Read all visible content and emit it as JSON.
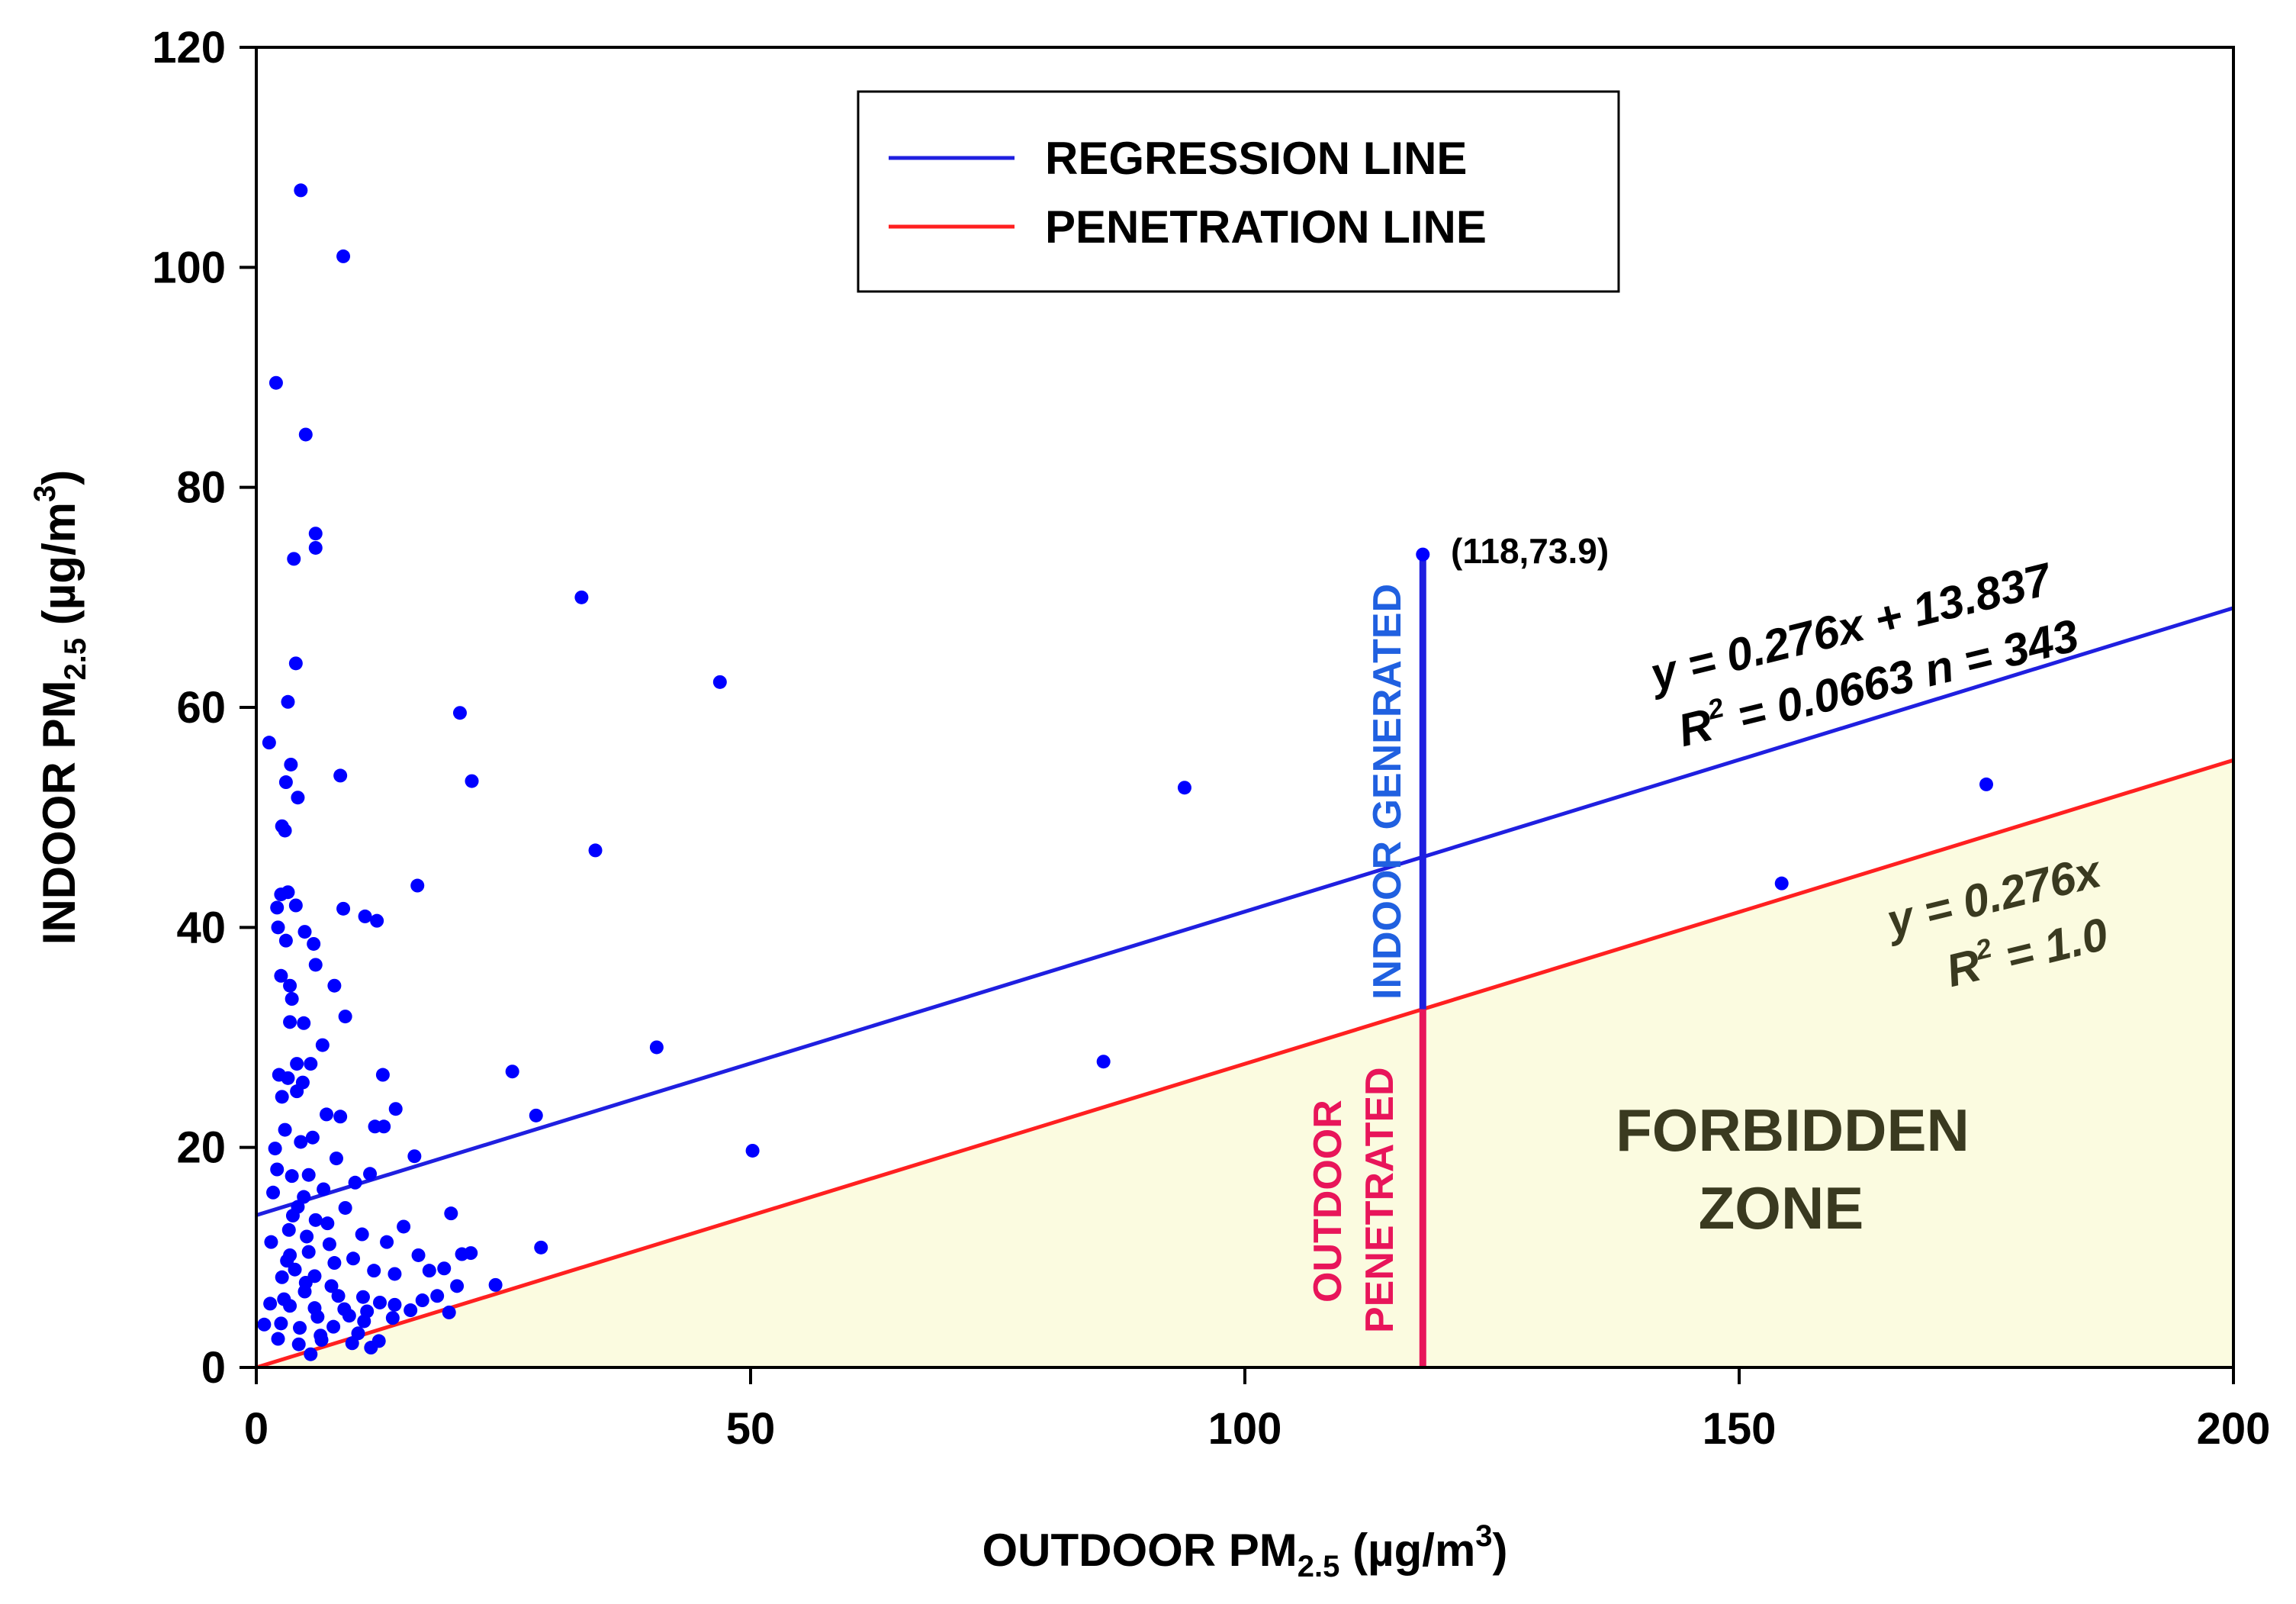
{
  "chart_data": {
    "type": "scatter",
    "xlabel_main": "OUTDOOR PM",
    "xlabel_sub": "2.5",
    "xlabel_unit": " (µg/m",
    "xlabel_sup": "3",
    "xlabel_close": ")",
    "ylabel_main": "INDOOR PM",
    "ylabel_sub": "2.5",
    "ylabel_unit": " (µg/m",
    "ylabel_sup": "3",
    "ylabel_close": ")",
    "xlim": [
      0,
      200
    ],
    "ylim": [
      0,
      120
    ],
    "xticks": [
      "0",
      "50",
      "100",
      "150",
      "200"
    ],
    "yticks": [
      "0",
      "20",
      "40",
      "60",
      "80",
      "100",
      "120"
    ],
    "xtick_values": [
      0,
      50,
      100,
      150,
      200
    ],
    "ytick_values": [
      0,
      20,
      40,
      60,
      80,
      100,
      120
    ],
    "grid": false,
    "legend_position": "top-center",
    "legend": [
      {
        "label": "REGRESSION LINE",
        "color": "#1f1fe0"
      },
      {
        "label": "PENETRATION LINE",
        "color": "#ff2020"
      }
    ],
    "regression": {
      "slope": 0.276,
      "intercept": 13.837,
      "color": "#1f1fe0",
      "eq_line1": "y = 0.276x + 13.837",
      "eq_r": "R",
      "eq_sup": "2",
      "eq_rest": " = 0.0663  n = 343"
    },
    "penetration": {
      "slope": 0.276,
      "intercept": 0,
      "color": "#ff2020",
      "eq_line1": "y = 0.276x",
      "eq_r": "R",
      "eq_sup": "2",
      "eq_rest": " = 1.0"
    },
    "highlight_point": {
      "x": 118,
      "y": 73.9,
      "label": "(118,73.9)"
    },
    "indoor_label": "INDOOR GENERATED",
    "outdoor_label_1": "OUTDOOR",
    "outdoor_label_2": "PENETRATED",
    "forbidden_1": "FORBIDDEN",
    "forbidden_2": "ZONE",
    "forbidden_color": "#fbfbe0",
    "point_color": "#0000ff",
    "points": [
      [
        4.5,
        107
      ],
      [
        8.8,
        101
      ],
      [
        2,
        89.5
      ],
      [
        5,
        84.8
      ],
      [
        6,
        75.8
      ],
      [
        6,
        74.5
      ],
      [
        3.8,
        73.5
      ],
      [
        4,
        64
      ],
      [
        3.2,
        60.5
      ],
      [
        1.3,
        56.8
      ],
      [
        3.5,
        54.8
      ],
      [
        8.5,
        53.8
      ],
      [
        4.2,
        51.8
      ],
      [
        2.6,
        49.2
      ],
      [
        2.9,
        48.8
      ],
      [
        3,
        53.2
      ],
      [
        2.5,
        43
      ],
      [
        3.2,
        43.2
      ],
      [
        2.1,
        41.8
      ],
      [
        4,
        42
      ],
      [
        8.8,
        41.7
      ],
      [
        11,
        41
      ],
      [
        12.2,
        40.6
      ],
      [
        2.2,
        40
      ],
      [
        3,
        38.8
      ],
      [
        4.9,
        39.6
      ],
      [
        5.8,
        38.5
      ],
      [
        6,
        36.6
      ],
      [
        2.5,
        35.6
      ],
      [
        3.4,
        34.7
      ],
      [
        3.6,
        33.5
      ],
      [
        7.9,
        34.7
      ],
      [
        4.8,
        31.3
      ],
      [
        3.4,
        31.4
      ],
      [
        9,
        31.9
      ],
      [
        6.7,
        29.3
      ],
      [
        4.1,
        27.6
      ],
      [
        5.5,
        27.6
      ],
      [
        2.3,
        26.6
      ],
      [
        3.2,
        26.3
      ],
      [
        4.7,
        25.9
      ],
      [
        4.1,
        25.1
      ],
      [
        2.6,
        24.6
      ],
      [
        12.8,
        26.6
      ],
      [
        14.1,
        23.5
      ],
      [
        1.9,
        19.9
      ],
      [
        2.9,
        21.6
      ],
      [
        4.5,
        20.5
      ],
      [
        7.1,
        23
      ],
      [
        8.5,
        22.8
      ],
      [
        12,
        21.9
      ],
      [
        12.9,
        21.9
      ],
      [
        2.1,
        18
      ],
      [
        3.6,
        17.4
      ],
      [
        5.3,
        17.5
      ],
      [
        8.1,
        19
      ],
      [
        10,
        16.8
      ],
      [
        11.5,
        17.6
      ],
      [
        16,
        19.2
      ],
      [
        1.7,
        15.9
      ],
      [
        3.7,
        13.8
      ],
      [
        6,
        13.4
      ],
      [
        9,
        14.5
      ],
      [
        10.7,
        12.1
      ],
      [
        13.2,
        11.4
      ],
      [
        14.9,
        12.8
      ],
      [
        16.4,
        10.2
      ],
      [
        1.5,
        11.4
      ],
      [
        3.4,
        10.2
      ],
      [
        5.3,
        10.5
      ],
      [
        7.9,
        9.5
      ],
      [
        11.9,
        8.8
      ],
      [
        14,
        8.5
      ],
      [
        17.5,
        8.8
      ],
      [
        19,
        9
      ],
      [
        19.7,
        14
      ],
      [
        20.8,
        10.3
      ],
      [
        21.7,
        10.4
      ],
      [
        2.6,
        8.2
      ],
      [
        5,
        7.7
      ],
      [
        7.6,
        7.4
      ],
      [
        10.8,
        6.4
      ],
      [
        14,
        5.7
      ],
      [
        16.8,
        6.1
      ],
      [
        18.3,
        6.5
      ],
      [
        20.3,
        7.4
      ],
      [
        24.2,
        7.5
      ],
      [
        1.4,
        5.8
      ],
      [
        3.4,
        5.6
      ],
      [
        5.9,
        5.4
      ],
      [
        9.4,
        4.7
      ],
      [
        12.5,
        5.9
      ],
      [
        15.6,
        5.2
      ],
      [
        19.5,
        5
      ],
      [
        2.5,
        4
      ],
      [
        4.4,
        3.6
      ],
      [
        7.8,
        3.7
      ],
      [
        10.9,
        4.2
      ],
      [
        13.8,
        4.5
      ],
      [
        2.2,
        2.6
      ],
      [
        4.3,
        2.1
      ],
      [
        6.6,
        2.5
      ],
      [
        9.7,
        2.2
      ],
      [
        11.6,
        1.8
      ],
      [
        12.4,
        2.4
      ],
      [
        0.8,
        3.9
      ],
      [
        5.5,
        1.2
      ],
      [
        3.3,
        12.5
      ],
      [
        4.8,
        15.5
      ],
      [
        6.8,
        16.2
      ],
      [
        5.7,
        20.9
      ],
      [
        7.4,
        11.2
      ],
      [
        8.3,
        6.5
      ],
      [
        9.8,
        9.9
      ],
      [
        6.2,
        4.6
      ],
      [
        3.9,
        8.9
      ],
      [
        4.9,
        6.9
      ],
      [
        2.8,
        6.2
      ],
      [
        6.5,
        2.9
      ],
      [
        8.9,
        5.3
      ],
      [
        10.3,
        3.1
      ],
      [
        11.2,
        5.1
      ],
      [
        7.2,
        13.1
      ],
      [
        4.2,
        14.6
      ],
      [
        5.1,
        11.9
      ],
      [
        3.1,
        9.7
      ],
      [
        5.9,
        8.3
      ],
      [
        20.6,
        59.5
      ],
      [
        21.8,
        53.3
      ],
      [
        16.3,
        43.8
      ],
      [
        32.9,
        70
      ],
      [
        34.3,
        47
      ],
      [
        46.9,
        62.3
      ],
      [
        40.5,
        29.1
      ],
      [
        25.9,
        26.9
      ],
      [
        28.3,
        22.9
      ],
      [
        50.2,
        19.7
      ],
      [
        28.8,
        10.9
      ],
      [
        85.7,
        27.8
      ],
      [
        93.9,
        52.7
      ],
      [
        154.3,
        44
      ],
      [
        175,
        53
      ],
      [
        118,
        73.9
      ]
    ]
  }
}
